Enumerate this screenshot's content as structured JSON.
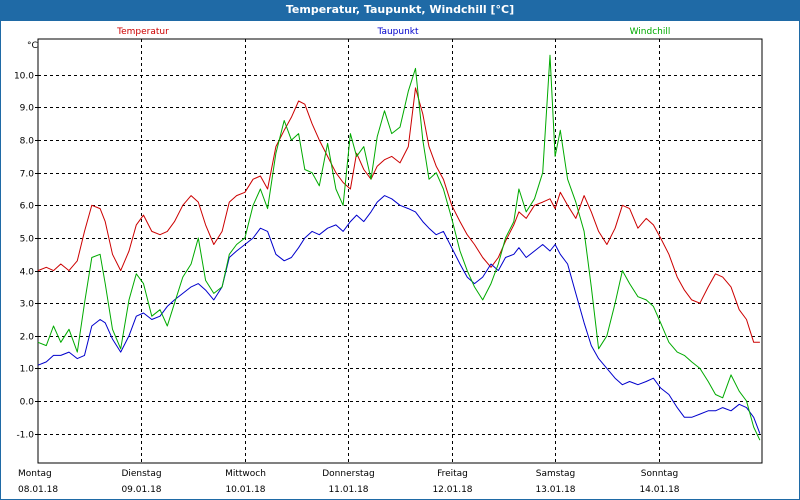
{
  "window": {
    "title": "Temperatur, Taupunkt, Windchill [°C]"
  },
  "chart_data": {
    "type": "line",
    "title": "Temperatur, Taupunkt, Windchill [°C]",
    "ylabel": "°C",
    "ylim": [
      -1.9,
      11.1
    ],
    "xlim": [
      0,
      7.0
    ],
    "grid": true,
    "legend": [
      "Temperatur",
      "Taupunkt",
      "Windchill"
    ],
    "yticks": [
      {
        "v": -1.0,
        "label": "-1.0"
      },
      {
        "v": 0.0,
        "label": "0.0"
      },
      {
        "v": 1.0,
        "label": "1.0"
      },
      {
        "v": 2.0,
        "label": "2.0"
      },
      {
        "v": 3.0,
        "label": "3.0"
      },
      {
        "v": 4.0,
        "label": "4.0"
      },
      {
        "v": 5.0,
        "label": "5.0"
      },
      {
        "v": 6.0,
        "label": "6.0"
      },
      {
        "v": 7.0,
        "label": "7.0"
      },
      {
        "v": 8.0,
        "label": "8.0"
      },
      {
        "v": 9.0,
        "label": "9.0"
      },
      {
        "v": 10.0,
        "label": "10.0"
      }
    ],
    "xticks": [
      {
        "v": 0,
        "day": "Montag",
        "date": "08.01.18"
      },
      {
        "v": 1,
        "day": "Dienstag",
        "date": "09.01.18"
      },
      {
        "v": 2,
        "day": "Mittwoch",
        "date": "10.01.18"
      },
      {
        "v": 3,
        "day": "Donnerstag",
        "date": "11.01.18"
      },
      {
        "v": 4,
        "day": "Freitag",
        "date": "12.01.18"
      },
      {
        "v": 5,
        "day": "Samstag",
        "date": "13.01.18"
      },
      {
        "v": 6,
        "day": "Sonntag",
        "date": "14.01.18"
      }
    ],
    "series": [
      {
        "name": "Temperatur",
        "color": "#cc0000",
        "x": [
          0,
          0.08,
          0.15,
          0.22,
          0.3,
          0.38,
          0.45,
          0.52,
          0.6,
          0.65,
          0.72,
          0.8,
          0.88,
          0.95,
          1.02,
          1.1,
          1.18,
          1.25,
          1.32,
          1.4,
          1.48,
          1.55,
          1.62,
          1.7,
          1.78,
          1.85,
          1.92,
          2.0,
          2.08,
          2.15,
          2.22,
          2.3,
          2.38,
          2.45,
          2.52,
          2.58,
          2.65,
          2.72,
          2.8,
          2.88,
          2.95,
          3.02,
          3.08,
          3.15,
          3.22,
          3.28,
          3.35,
          3.42,
          3.5,
          3.58,
          3.65,
          3.72,
          3.78,
          3.85,
          3.92,
          4.0,
          4.08,
          4.15,
          4.22,
          4.3,
          4.38,
          4.45,
          4.52,
          4.6,
          4.65,
          4.72,
          4.8,
          4.88,
          4.95,
          5.0,
          5.05,
          5.12,
          5.2,
          5.28,
          5.35,
          5.42,
          5.5,
          5.58,
          5.65,
          5.72,
          5.8,
          5.88,
          5.95,
          6.02,
          6.1,
          6.18,
          6.25,
          6.32,
          6.4,
          6.48,
          6.55,
          6.62,
          6.7,
          6.78,
          6.85,
          6.92,
          6.98
        ],
        "values": [
          4.0,
          4.1,
          4.0,
          4.2,
          4.0,
          4.3,
          5.2,
          6.0,
          5.9,
          5.5,
          4.5,
          4.0,
          4.6,
          5.4,
          5.7,
          5.2,
          5.1,
          5.2,
          5.5,
          6.0,
          6.3,
          6.1,
          5.4,
          4.8,
          5.2,
          6.1,
          6.3,
          6.4,
          6.8,
          6.9,
          6.5,
          7.8,
          8.3,
          8.7,
          9.2,
          9.1,
          8.5,
          8.0,
          7.5,
          7.0,
          6.7,
          6.5,
          7.6,
          7.1,
          6.8,
          7.2,
          7.4,
          7.5,
          7.3,
          7.8,
          9.6,
          8.8,
          7.8,
          7.2,
          6.8,
          6.0,
          5.5,
          5.1,
          4.8,
          4.4,
          4.1,
          4.4,
          4.9,
          5.4,
          5.8,
          5.6,
          6.0,
          6.1,
          6.2,
          5.9,
          6.4,
          6.0,
          5.6,
          6.3,
          5.8,
          5.2,
          4.8,
          5.3,
          6.0,
          5.9,
          5.3,
          5.6,
          5.4,
          5.0,
          4.5,
          3.8,
          3.4,
          3.1,
          3.0,
          3.5,
          3.9,
          3.8,
          3.5,
          2.8,
          2.5,
          1.8,
          1.8
        ]
      },
      {
        "name": "Taupunkt",
        "color": "#0000cc",
        "x": [
          0,
          0.08,
          0.15,
          0.22,
          0.3,
          0.38,
          0.45,
          0.52,
          0.6,
          0.65,
          0.72,
          0.8,
          0.88,
          0.95,
          1.02,
          1.1,
          1.18,
          1.25,
          1.32,
          1.4,
          1.48,
          1.55,
          1.62,
          1.7,
          1.78,
          1.85,
          1.92,
          2.0,
          2.08,
          2.15,
          2.22,
          2.3,
          2.38,
          2.45,
          2.52,
          2.58,
          2.65,
          2.72,
          2.8,
          2.88,
          2.95,
          3.02,
          3.08,
          3.15,
          3.22,
          3.28,
          3.35,
          3.42,
          3.5,
          3.58,
          3.65,
          3.72,
          3.78,
          3.85,
          3.92,
          4.0,
          4.08,
          4.15,
          4.22,
          4.3,
          4.38,
          4.45,
          4.52,
          4.6,
          4.65,
          4.72,
          4.8,
          4.88,
          4.95,
          5.0,
          5.05,
          5.12,
          5.2,
          5.28,
          5.35,
          5.42,
          5.5,
          5.58,
          5.65,
          5.72,
          5.8,
          5.88,
          5.95,
          6.02,
          6.1,
          6.18,
          6.25,
          6.32,
          6.4,
          6.48,
          6.55,
          6.62,
          6.7,
          6.78,
          6.85,
          6.92,
          6.98
        ],
        "values": [
          1.1,
          1.2,
          1.4,
          1.4,
          1.5,
          1.3,
          1.4,
          2.3,
          2.5,
          2.4,
          1.9,
          1.5,
          2.0,
          2.6,
          2.7,
          2.5,
          2.6,
          2.9,
          3.1,
          3.3,
          3.5,
          3.6,
          3.4,
          3.1,
          3.5,
          4.4,
          4.6,
          4.8,
          5.0,
          5.3,
          5.2,
          4.5,
          4.3,
          4.4,
          4.7,
          5.0,
          5.2,
          5.1,
          5.3,
          5.4,
          5.2,
          5.5,
          5.7,
          5.5,
          5.8,
          6.1,
          6.3,
          6.2,
          6.0,
          5.9,
          5.8,
          5.5,
          5.3,
          5.1,
          5.2,
          4.7,
          4.2,
          3.8,
          3.6,
          3.8,
          4.2,
          4.0,
          4.4,
          4.5,
          4.7,
          4.4,
          4.6,
          4.8,
          4.6,
          4.8,
          4.5,
          4.2,
          3.3,
          2.4,
          1.7,
          1.3,
          1.0,
          0.7,
          0.5,
          0.6,
          0.5,
          0.6,
          0.7,
          0.4,
          0.2,
          -0.2,
          -0.5,
          -0.5,
          -0.4,
          -0.3,
          -0.3,
          -0.2,
          -0.3,
          -0.1,
          -0.2,
          -0.5,
          -1.0
        ]
      },
      {
        "name": "Windchill",
        "color": "#00aa00",
        "x": [
          0,
          0.08,
          0.15,
          0.22,
          0.3,
          0.38,
          0.45,
          0.52,
          0.6,
          0.65,
          0.72,
          0.8,
          0.88,
          0.95,
          1.02,
          1.1,
          1.18,
          1.25,
          1.32,
          1.4,
          1.48,
          1.55,
          1.62,
          1.7,
          1.78,
          1.85,
          1.92,
          2.0,
          2.08,
          2.15,
          2.22,
          2.3,
          2.38,
          2.45,
          2.52,
          2.58,
          2.65,
          2.72,
          2.8,
          2.88,
          2.95,
          3.02,
          3.08,
          3.15,
          3.22,
          3.28,
          3.35,
          3.42,
          3.5,
          3.58,
          3.65,
          3.72,
          3.78,
          3.85,
          3.92,
          4.0,
          4.08,
          4.15,
          4.22,
          4.3,
          4.38,
          4.45,
          4.52,
          4.6,
          4.65,
          4.72,
          4.8,
          4.88,
          4.95,
          5.0,
          5.05,
          5.12,
          5.2,
          5.28,
          5.35,
          5.42,
          5.5,
          5.58,
          5.65,
          5.72,
          5.8,
          5.88,
          5.95,
          6.02,
          6.1,
          6.18,
          6.25,
          6.32,
          6.4,
          6.48,
          6.55,
          6.62,
          6.7,
          6.78,
          6.85,
          6.92,
          6.98
        ],
        "values": [
          1.8,
          1.7,
          2.3,
          1.8,
          2.2,
          1.5,
          3.0,
          4.4,
          4.5,
          3.6,
          2.2,
          1.6,
          3.1,
          3.9,
          3.6,
          2.6,
          2.8,
          2.3,
          3.0,
          3.8,
          4.2,
          5.0,
          3.7,
          3.3,
          3.5,
          4.5,
          4.8,
          5.0,
          6.0,
          6.5,
          5.9,
          7.6,
          8.6,
          8.0,
          8.2,
          7.1,
          7.0,
          6.6,
          7.9,
          6.5,
          6.0,
          8.2,
          7.5,
          7.8,
          6.8,
          8.1,
          8.9,
          8.2,
          8.4,
          9.5,
          10.2,
          8.0,
          6.8,
          7.0,
          6.5,
          5.6,
          4.6,
          4.0,
          3.5,
          3.1,
          3.6,
          4.2,
          5.0,
          5.5,
          6.5,
          5.8,
          6.2,
          7.0,
          10.6,
          7.5,
          8.3,
          6.8,
          6.1,
          5.2,
          3.5,
          1.6,
          2.0,
          3.0,
          4.0,
          3.6,
          3.2,
          3.1,
          2.9,
          2.4,
          1.8,
          1.5,
          1.4,
          1.2,
          1.0,
          0.6,
          0.2,
          0.1,
          0.8,
          0.3,
          0.0,
          -0.8,
          -1.2
        ]
      }
    ]
  }
}
